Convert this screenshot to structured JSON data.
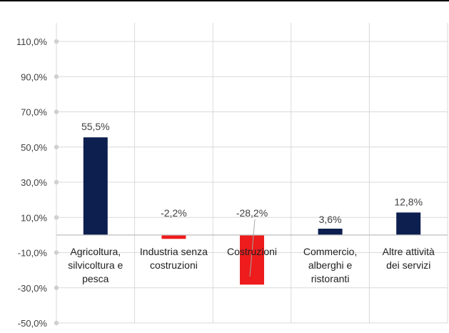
{
  "chart_data": {
    "type": "bar",
    "categories": [
      [
        "Agricoltura,",
        "silvicoltura e",
        "pesca"
      ],
      [
        "Industria senza",
        "costruzioni"
      ],
      [
        "Costruzioni"
      ],
      [
        "Commercio,",
        "alberghi e",
        "ristoranti"
      ],
      [
        "Altre attività",
        "dei servizi"
      ]
    ],
    "values": [
      55.5,
      -2.2,
      -28.2,
      3.6,
      12.8
    ],
    "data_labels": [
      "55,5%",
      "-2,2%",
      "-28,2%",
      "3,6%",
      "12,8%"
    ],
    "bar_colors": [
      "#0d1f4f",
      "#ee1c1c",
      "#ee1c1c",
      "#0d1f4f",
      "#0d1f4f"
    ],
    "ylim": [
      -50,
      110
    ],
    "yticks": [
      110,
      90,
      70,
      50,
      30,
      10,
      -10,
      -30,
      -50
    ],
    "ytick_labels": [
      "110,0%",
      "90,0%",
      "70,0%",
      "50,0%",
      "30,0%",
      "10,0%",
      "-10,0%",
      "-30,0%",
      "-50,0%"
    ],
    "grid": true,
    "legend": "none",
    "title": "",
    "xlabel": "",
    "ylabel": ""
  }
}
